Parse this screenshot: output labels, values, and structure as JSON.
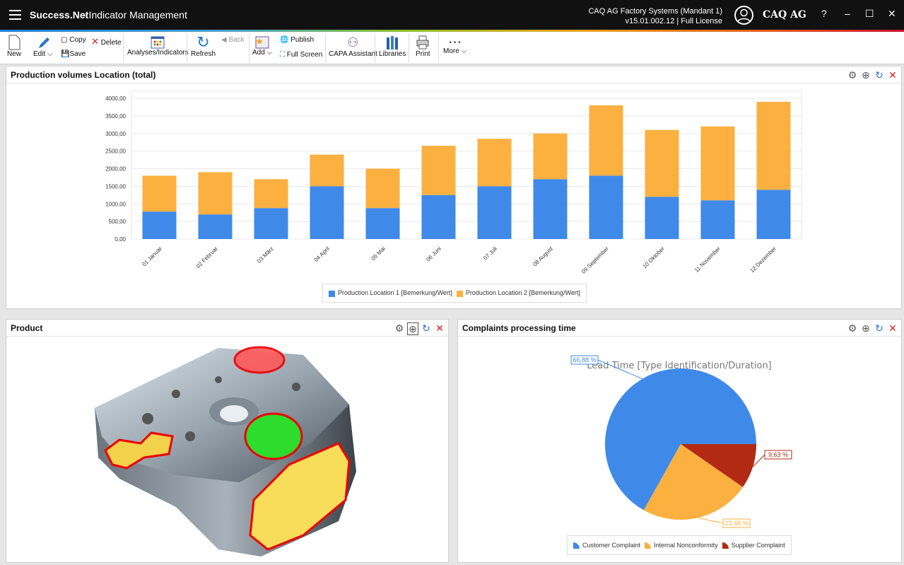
{
  "titlebar": {
    "app": "Success.Net",
    "module": "- Indicator Management",
    "system": "CAQ AG Factory Systems (Mandant 1)",
    "version": "v15.01.002.12 | Full License",
    "logo": "CAQ AG",
    "help": "?",
    "minimize": "–",
    "maximize": "☐",
    "close": "✕"
  },
  "toolbar": {
    "new": "New",
    "edit": "Edit",
    "copy": "Copy",
    "delete": "Delete",
    "save": "Save",
    "analyses": "Analyses/Indicators",
    "refresh": "Refresh",
    "back": "Back",
    "add": "Add",
    "publish": "Publish",
    "fullscreen": "Full Screen",
    "capa": "CAPA Assistant",
    "libraries": "Libraries",
    "print": "Print",
    "more": "More"
  },
  "panels": {
    "production": "Production volumes Location (total)",
    "product": "Product",
    "complaints": "Complaints processing time"
  },
  "colors": {
    "blue": "#3f8ae9",
    "orange": "#fbb040",
    "red": "#b22a14"
  },
  "chart_data": [
    {
      "type": "bar",
      "stacked": true,
      "title": "Production volumes Location (total)",
      "categories": [
        "01 Januar",
        "02 Februar",
        "03 März",
        "04 April",
        "05 Mai",
        "06 Juni",
        "07 Juli",
        "08 August",
        "09 September",
        "10 Oktober",
        "11 November",
        "12 Dezember"
      ],
      "series": [
        {
          "name": "Production Location 1 [Bemerkung/Wert]",
          "values": [
            780,
            700,
            880,
            1500,
            880,
            1250,
            1500,
            1700,
            1800,
            1200,
            1100,
            1400
          ]
        },
        {
          "name": "Production Location 2 [Bemerkung/Wert]",
          "values": [
            1020,
            1200,
            820,
            900,
            1120,
            1400,
            1350,
            1300,
            2000,
            1900,
            2100,
            2500
          ]
        }
      ],
      "yticks": [
        "0,00",
        "500,00",
        "1000,00",
        "1500,00",
        "2000,00",
        "2500,00",
        "3000,00",
        "3500,00",
        "4000,00"
      ],
      "ylim": [
        0,
        4000
      ],
      "legend": "bottom"
    },
    {
      "type": "pie",
      "title": "Lead Time [Type Identification/Duration]",
      "slices": [
        {
          "name": "Customer Complaint",
          "value": 66.88,
          "label": "66,88 %"
        },
        {
          "name": "Internal Nonconformity",
          "value": 23.48,
          "label": "23,48 %"
        },
        {
          "name": "Supplier Complaint",
          "value": 9.63,
          "label": "9,63 %"
        }
      ],
      "legend": "bottom"
    }
  ]
}
